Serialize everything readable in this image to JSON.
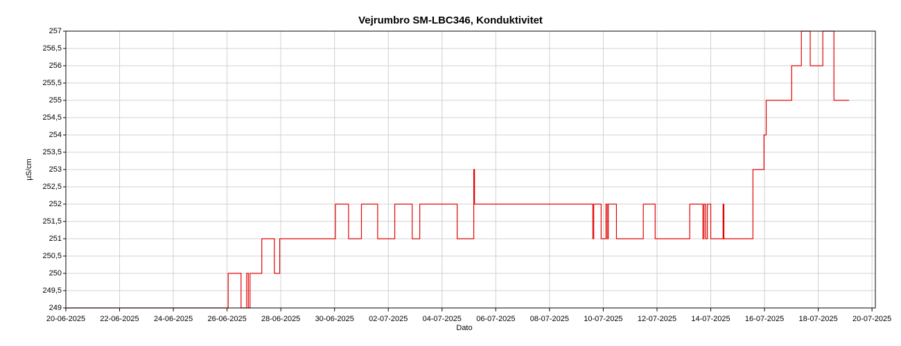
{
  "chart_data": {
    "type": "line",
    "step": "post",
    "title": "Vejrumbro SM-LBC346, Konduktivitet",
    "x_label": "Dato",
    "y_label": "µS/cm",
    "x": [
      "2025-06-20T00:00",
      "2025-06-26T01:00",
      "2025-06-26T12:30",
      "2025-06-26T17:30",
      "2025-06-26T19:00",
      "2025-06-26T20:30",
      "2025-06-27T07:00",
      "2025-06-27T18:15",
      "2025-06-27T23:00",
      "2025-06-30T00:45",
      "2025-06-30T12:30",
      "2025-07-01T00:00",
      "2025-07-01T14:30",
      "2025-07-02T05:45",
      "2025-07-02T21:20",
      "2025-07-03T04:05",
      "2025-07-04T13:30",
      "2025-07-05T04:20",
      "2025-07-05T05:00",
      "2025-07-09T14:40",
      "2025-07-09T15:30",
      "2025-07-09T22:05",
      "2025-07-10T02:25",
      "2025-07-10T03:30",
      "2025-07-10T04:30",
      "2025-07-10T11:45",
      "2025-07-11T11:45",
      "2025-07-11T22:20",
      "2025-07-13T05:15",
      "2025-07-13T17:00",
      "2025-07-13T18:00",
      "2025-07-13T19:30",
      "2025-07-13T21:00",
      "2025-07-14T00:00",
      "2025-07-14T11:00",
      "2025-07-14T11:45",
      "2025-07-15T13:40",
      "2025-07-15T23:30",
      "2025-07-16T01:30",
      "2025-07-17T00:15",
      "2025-07-17T08:55",
      "2025-07-17T16:50",
      "2025-07-18T04:05",
      "2025-07-18T14:00",
      "2025-07-19T03:35"
    ],
    "series": [
      {
        "name": "Konduktivitet",
        "color": "#e00000",
        "values": [
          249,
          250,
          249,
          250,
          249,
          250,
          251,
          250,
          251,
          252,
          251,
          252,
          251,
          252,
          251,
          252,
          251,
          253,
          252,
          251,
          252,
          251,
          252,
          251,
          252,
          251,
          252,
          251,
          252,
          251,
          252,
          251,
          252,
          251,
          252,
          251,
          253,
          254,
          255,
          256,
          257,
          256,
          257,
          255,
          255
        ]
      }
    ],
    "xlim": [
      "2025-06-20T00:00",
      "2025-07-20T03:00"
    ],
    "xticks": [
      {
        "value": "2025-06-20T00:00",
        "label": "20-06-2025"
      },
      {
        "value": "2025-06-22T00:00",
        "label": "22-06-2025"
      },
      {
        "value": "2025-06-24T00:00",
        "label": "24-06-2025"
      },
      {
        "value": "2025-06-26T00:00",
        "label": "26-06-2025"
      },
      {
        "value": "2025-06-28T00:00",
        "label": "28-06-2025"
      },
      {
        "value": "2025-06-30T00:00",
        "label": "30-06-2025"
      },
      {
        "value": "2025-07-02T00:00",
        "label": "02-07-2025"
      },
      {
        "value": "2025-07-04T00:00",
        "label": "04-07-2025"
      },
      {
        "value": "2025-07-06T00:00",
        "label": "06-07-2025"
      },
      {
        "value": "2025-07-08T00:00",
        "label": "08-07-2025"
      },
      {
        "value": "2025-07-10T00:00",
        "label": "10-07-2025"
      },
      {
        "value": "2025-07-12T00:00",
        "label": "12-07-2025"
      },
      {
        "value": "2025-07-14T00:00",
        "label": "14-07-2025"
      },
      {
        "value": "2025-07-16T00:00",
        "label": "16-07-2025"
      },
      {
        "value": "2025-07-18T00:00",
        "label": "18-07-2025"
      },
      {
        "value": "2025-07-20T00:00",
        "label": "20-07-2025"
      }
    ],
    "ylim": [
      249,
      257
    ],
    "yticks": [
      249,
      {
        "value": 249.5,
        "label": "249,5"
      },
      250,
      {
        "value": 250.5,
        "label": "250,5"
      },
      251,
      {
        "value": 251.5,
        "label": "251,5"
      },
      252,
      {
        "value": 252.5,
        "label": "252,5"
      },
      253,
      {
        "value": 253.5,
        "label": "253,5"
      },
      254,
      {
        "value": 254.5,
        "label": "254,5"
      },
      255,
      {
        "value": 255.5,
        "label": "255,5"
      },
      256,
      {
        "value": 256.5,
        "label": "256,5"
      },
      257
    ],
    "grid": true
  }
}
